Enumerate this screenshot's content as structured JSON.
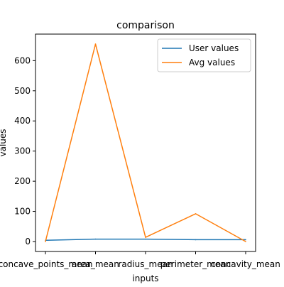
{
  "chart_data": {
    "type": "line",
    "title": "comparison",
    "xlabel": "inputs",
    "ylabel": "values",
    "categories": [
      "concave_points_mean",
      "area_mean",
      "radius_mean",
      "perimeter_mean",
      "concavity_mean"
    ],
    "series": [
      {
        "name": "User values",
        "color": "#1f77b4",
        "values": [
          4,
          8,
          8,
          6,
          6
        ]
      },
      {
        "name": "Avg values",
        "color": "#ff7f0e",
        "values": [
          0.05,
          655,
          14,
          92,
          0.09
        ]
      }
    ],
    "yticks": [
      0,
      100,
      200,
      300,
      400,
      500,
      600
    ],
    "ylim": [
      -33,
      688
    ],
    "grid": false,
    "legend": "top-right"
  }
}
